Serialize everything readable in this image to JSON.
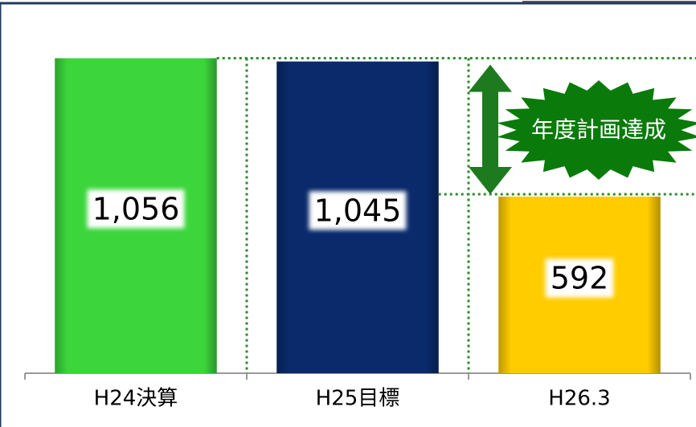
{
  "chart_data": {
    "type": "bar",
    "categories": [
      "H24決算",
      "H25目標",
      "H26.3"
    ],
    "values": [
      1056,
      1045,
      592
    ],
    "value_labels": [
      "1,056",
      "1,045",
      "592"
    ],
    "colors": [
      "#3cd63c",
      "#0a2a6b",
      "#ffcc00"
    ],
    "ylim": [
      0,
      1200
    ],
    "annotation": "年度計画達成"
  }
}
